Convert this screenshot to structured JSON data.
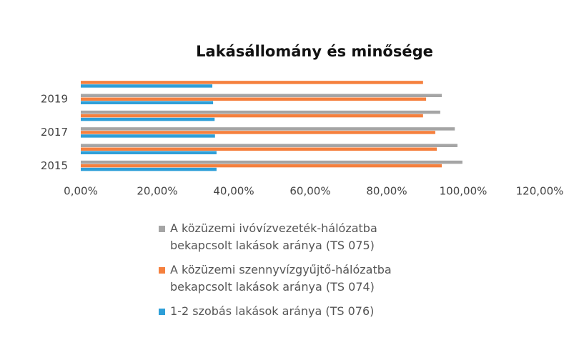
{
  "chart_data": {
    "type": "hbar",
    "title": "Lakásállomány és minősége",
    "categories": [
      "2015",
      null,
      "2017",
      null,
      "2019",
      null
    ],
    "series": [
      {
        "name": "A közüzemi ivóvízvezeték-hálózatba bekapcsolt lakások aránya (TS 075)",
        "color": "#a5a5a5",
        "values": [
          99.8,
          98.5,
          97.8,
          94.0,
          94.4,
          null
        ]
      },
      {
        "name": "A közüzemi szennyvízgyűjtő-hálózatba bekapcsolt lakások aránya (TS 074)",
        "color": "#f5803e",
        "values": [
          94.4,
          93.1,
          92.7,
          89.5,
          90.3,
          89.5
        ]
      },
      {
        "name": "1-2 szobás lakások aránya (TS 076)",
        "color": "#2e9fd8",
        "values": [
          35.5,
          35.5,
          35.1,
          35.0,
          34.6,
          34.4
        ]
      }
    ],
    "xlim": [
      0,
      120
    ],
    "xticks": [
      {
        "value": 0,
        "label": "0,00%"
      },
      {
        "value": 20,
        "label": "20,00%"
      },
      {
        "value": 40,
        "label": "40,00%"
      },
      {
        "value": 60,
        "label": "60,00%"
      },
      {
        "value": 80,
        "label": "80,00%"
      },
      {
        "value": 100,
        "label": "100,00%"
      },
      {
        "value": 120,
        "label": "120,00%"
      }
    ],
    "grid": false,
    "legend": "bottom"
  }
}
